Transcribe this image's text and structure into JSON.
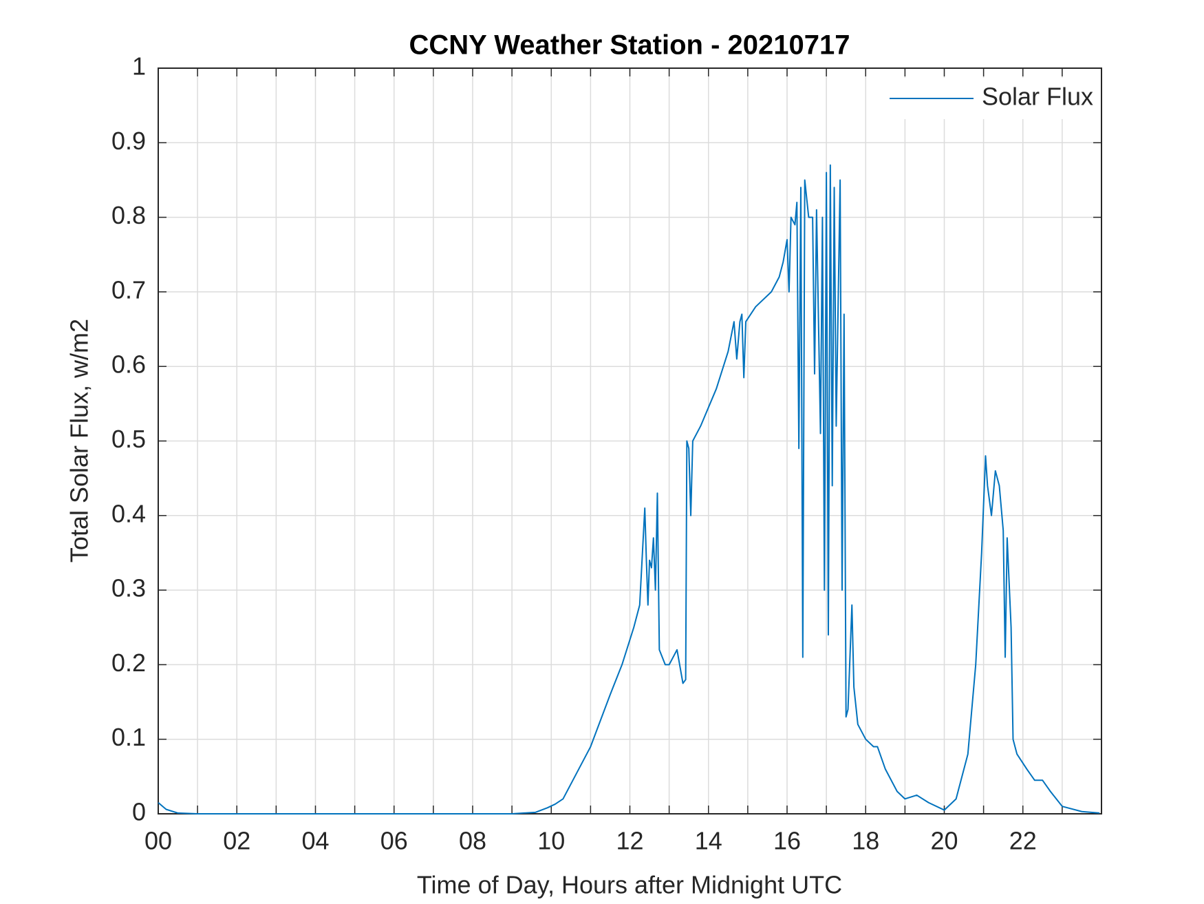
{
  "chart_data": {
    "type": "line",
    "title": "CCNY Weather Station - 20210717",
    "xlabel": "Time of Day, Hours after Midnight UTC",
    "ylabel": "Total Solar Flux, w/m2",
    "xlim": [
      0,
      24
    ],
    "ylim": [
      0,
      1
    ],
    "xticks": [
      {
        "value": 0,
        "label": "00"
      },
      {
        "value": 2,
        "label": "02"
      },
      {
        "value": 4,
        "label": "04"
      },
      {
        "value": 6,
        "label": "06"
      },
      {
        "value": 8,
        "label": "08"
      },
      10,
      12,
      14,
      16,
      18,
      20,
      22
    ],
    "xminorticks": [
      1,
      3,
      5,
      7,
      9,
      11,
      13,
      15,
      17,
      19,
      21,
      23
    ],
    "yticks": [
      0,
      0.1,
      0.2,
      0.3,
      0.4,
      0.5,
      0.6,
      0.7,
      0.8,
      0.9,
      1
    ],
    "grid": true,
    "legend": "northeast",
    "series": [
      {
        "name": "Solar Flux",
        "color": "#0072bd",
        "x": [
          0,
          0.2,
          0.5,
          1,
          9,
          9.6,
          9.9,
          10.1,
          10.3,
          10.5,
          11,
          11.5,
          11.8,
          12.1,
          12.25,
          12.3,
          12.38,
          12.42,
          12.46,
          12.5,
          12.55,
          12.6,
          12.65,
          12.7,
          12.75,
          12.9,
          13.0,
          13.1,
          13.2,
          13.3,
          13.35,
          13.42,
          13.45,
          13.5,
          13.55,
          13.6,
          13.8,
          14.2,
          14.5,
          14.65,
          14.72,
          14.8,
          14.85,
          14.9,
          14.95,
          15.2,
          15.6,
          15.8,
          15.9,
          16.0,
          16.05,
          16.1,
          16.2,
          16.25,
          16.3,
          16.35,
          16.4,
          16.45,
          16.55,
          16.65,
          16.7,
          16.75,
          16.85,
          16.9,
          16.95,
          17.0,
          17.05,
          17.1,
          17.15,
          17.2,
          17.25,
          17.35,
          17.4,
          17.45,
          17.5,
          17.55,
          17.65,
          17.7,
          17.8,
          18.0,
          18.2,
          18.3,
          18.5,
          18.8,
          19.0,
          19.3,
          19.6,
          20.0,
          20.3,
          20.6,
          20.8,
          20.95,
          21.05,
          21.1,
          21.2,
          21.3,
          21.4,
          21.5,
          21.55,
          21.6,
          21.7,
          21.75,
          21.85,
          22.1,
          22.3,
          22.5,
          22.7,
          23.0,
          23.5,
          23.95
        ],
        "values": [
          0.015,
          0.006,
          0.001,
          0,
          0,
          0.002,
          0.008,
          0.013,
          0.02,
          0.04,
          0.09,
          0.16,
          0.2,
          0.25,
          0.28,
          0.33,
          0.41,
          0.34,
          0.28,
          0.34,
          0.33,
          0.37,
          0.3,
          0.43,
          0.22,
          0.2,
          0.2,
          0.21,
          0.22,
          0.19,
          0.175,
          0.18,
          0.5,
          0.49,
          0.4,
          0.5,
          0.52,
          0.57,
          0.62,
          0.66,
          0.61,
          0.66,
          0.67,
          0.585,
          0.66,
          0.68,
          0.7,
          0.72,
          0.74,
          0.77,
          0.7,
          0.8,
          0.79,
          0.82,
          0.49,
          0.84,
          0.21,
          0.85,
          0.8,
          0.8,
          0.59,
          0.81,
          0.51,
          0.8,
          0.3,
          0.86,
          0.24,
          0.87,
          0.44,
          0.84,
          0.52,
          0.85,
          0.3,
          0.67,
          0.13,
          0.14,
          0.28,
          0.17,
          0.12,
          0.1,
          0.09,
          0.09,
          0.06,
          0.03,
          0.02,
          0.025,
          0.015,
          0.005,
          0.02,
          0.08,
          0.2,
          0.35,
          0.48,
          0.44,
          0.4,
          0.46,
          0.44,
          0.38,
          0.21,
          0.37,
          0.25,
          0.1,
          0.08,
          0.06,
          0.045,
          0.045,
          0.03,
          0.01,
          0.003,
          0.001
        ]
      }
    ]
  }
}
